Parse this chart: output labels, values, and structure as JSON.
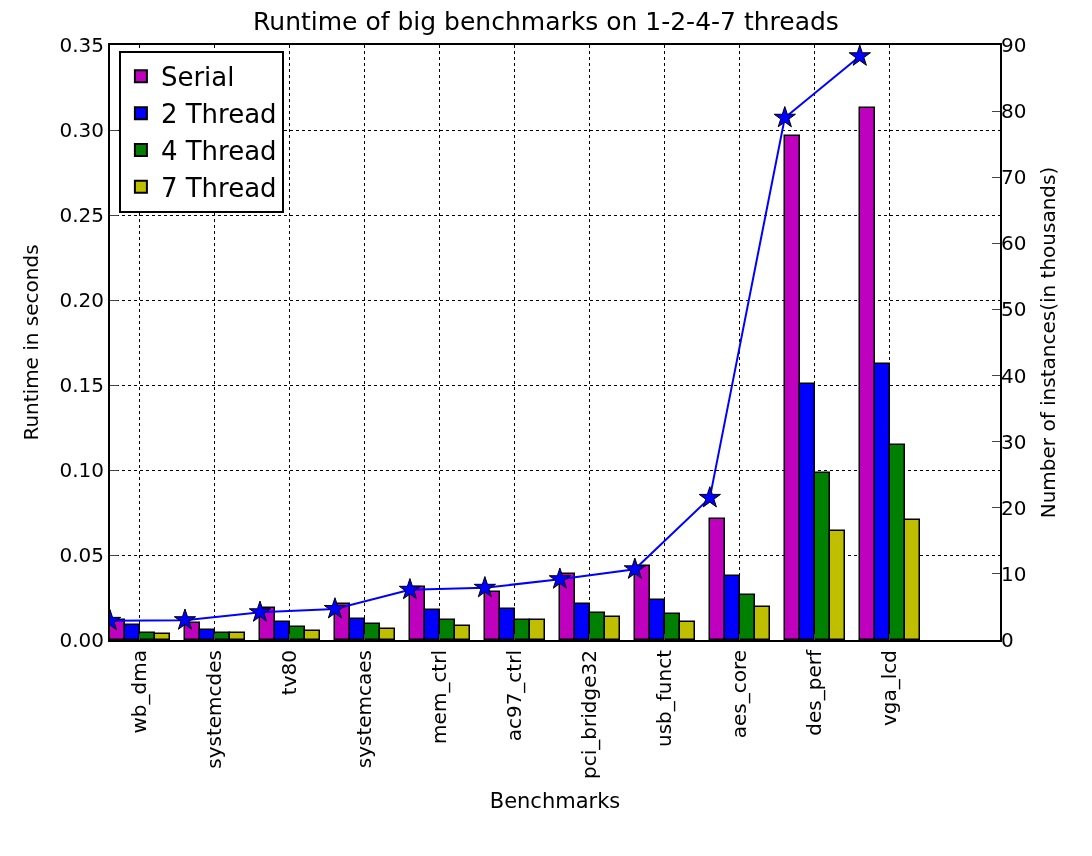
{
  "chart_data": {
    "type": "bar",
    "title": "Runtime of big benchmarks on 1-2-4-7 threads",
    "xlabel": "Benchmarks",
    "ylabel": "Runtime in seconds",
    "y2label": "Number of instances(in thousands)",
    "categories": [
      "wb_dma",
      "systemcdes",
      "tv80",
      "systemcaes",
      "mem_ctrl",
      "ac97_ctrl",
      "pci_bridge32",
      "usb_funct",
      "aes_core",
      "des_perf",
      "vga_lcd"
    ],
    "series": [
      {
        "name": "Serial",
        "color": "#bf00bf",
        "values": [
          0.0118,
          0.01,
          0.019,
          0.021,
          0.031,
          0.028,
          0.0386,
          0.0435,
          0.071,
          0.2965,
          0.313
        ]
      },
      {
        "name": "2 Thread",
        "color": "#0000ff",
        "values": [
          0.009,
          0.006,
          0.0105,
          0.0124,
          0.0176,
          0.0182,
          0.021,
          0.0235,
          0.0376,
          0.1506,
          0.1624
        ]
      },
      {
        "name": "4 Thread",
        "color": "#008000",
        "values": [
          0.004,
          0.004,
          0.0077,
          0.0094,
          0.0118,
          0.0118,
          0.0157,
          0.0153,
          0.0265,
          0.098,
          0.1147
        ]
      },
      {
        "name": "7 Thread",
        "color": "#bfbf00",
        "values": [
          0.0035,
          0.004,
          0.0053,
          0.0065,
          0.0082,
          0.012,
          0.0135,
          0.0106,
          0.0193,
          0.064,
          0.0706
        ]
      },
      {
        "type": "line",
        "axis": "y2",
        "color": "#0000ff",
        "marker": "star",
        "values": [
          2.9,
          3.0,
          4.2,
          4.7,
          7.6,
          7.9,
          9.2,
          10.7,
          21.5,
          79.0,
          88.3
        ]
      }
    ],
    "ylim": [
      0,
      0.35
    ],
    "yticks": [
      {
        "value": 0,
        "label": "0.00"
      },
      {
        "value": 0.05,
        "label": "0.05"
      },
      {
        "value": 0.1,
        "label": "0.10"
      },
      {
        "value": 0.15,
        "label": "0.15"
      },
      {
        "value": 0.2,
        "label": "0.20"
      },
      {
        "value": 0.25,
        "label": "0.25"
      },
      {
        "value": 0.3,
        "label": "0.30"
      },
      {
        "value": 0.35,
        "label": "0.35"
      }
    ],
    "y2lim": [
      0,
      90
    ],
    "y2ticks": [
      0,
      10,
      20,
      30,
      40,
      50,
      60,
      70,
      80,
      90
    ],
    "grid": true,
    "legend": "top left"
  }
}
